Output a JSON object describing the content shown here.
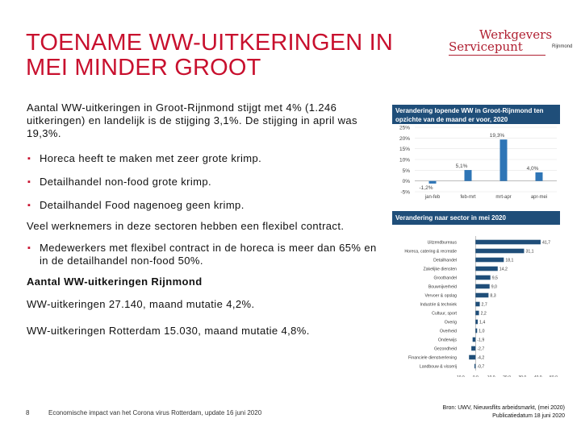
{
  "slide": {
    "title_line1": "TOENAME WW-UITKERINGEN IN",
    "title_line2": "MEI MINDER GROOT"
  },
  "logo": {
    "line1": "Werkgevers",
    "line2": "Servicepunt",
    "line3": "Rijnmond"
  },
  "body": {
    "p1": "Aantal WW-uitkeringen in Groot-Rijnmond stijgt met 4% (1.246 uitkeringen) en landelijk is de stijging 3,1%. De stijging in april was 19,3%.",
    "b1": "Horeca heeft te maken met zeer grote krimp.",
    "b2": "Detailhandel non-food grote krimp.",
    "b3": "Detailhandel Food nagenoeg geen krimp.",
    "p2": "Veel werknemers in deze sectoren hebben een flexibel contract.",
    "b4": "Medewerkers met flexibel contract in de horeca is meer dan 65% en in de detailhandel non-food 50%.",
    "h1": "Aantal WW-uitkeringen Rijnmond",
    "p3": "WW-uitkeringen 27.140, maand mutatie 4,2%.",
    "p4": "WW-uitkeringen Rotterdam 15.030, maand mutatie 4,8%."
  },
  "footer": {
    "page": "8",
    "text": "Economische impact van het Corona virus Rotterdam, update 16 juni 2020",
    "source1": "Bron: UWV, Nieuwsflits arbeidsmarkt, (mei 2020)",
    "source2": "Publicatiedatum 18 juni 2020"
  },
  "chart_data": [
    {
      "type": "bar",
      "title": "Verandering lopende WW in Groot-Rijnmond ten opzichte van de maand er voor, 2020",
      "categories": [
        "jan-feb",
        "feb-mrt",
        "mrt-apr",
        "apr-mei"
      ],
      "values": [
        -1.2,
        5.1,
        19.3,
        4.0
      ],
      "labels": [
        "-1,2%",
        "5,1%",
        "19,3%",
        "4,0%"
      ],
      "yticks": [
        "25%",
        "20%",
        "15%",
        "10%",
        "5%",
        "0%",
        "-5%"
      ],
      "ylim": [
        -5,
        25
      ],
      "color": "#2e75b6"
    },
    {
      "type": "bar",
      "orientation": "horizontal",
      "title": "Verandering naar sector in mei 2020",
      "categories": [
        "Uitzendbureaus",
        "Horeca, catering & recreatie",
        "Detailhandel",
        "Zakelijke diensten",
        "Groothandel",
        "Bouwnijverheid",
        "Vervoer & opslag",
        "Industrie & techniek",
        "Cultuur, sport",
        "Overig",
        "Overheid",
        "Onderwijs",
        "Gezondheid",
        "Financiele dienstverlening",
        "Landbouw & visserij"
      ],
      "values": [
        41.7,
        31.1,
        18.1,
        14.2,
        9.5,
        9.0,
        8.3,
        2.7,
        2.2,
        1.4,
        1.0,
        -1.9,
        -2.7,
        -4.2,
        -0.7
      ],
      "labels": [
        "41,7",
        "31,1",
        "18,1",
        "14,2",
        "9,5",
        "9,0",
        "8,3",
        "2,7",
        "2,2",
        "1,4",
        "1,0",
        "-1,9",
        "-2,7",
        "-4,2",
        "-0,7"
      ],
      "xticks": [
        "-10.0",
        "0.0",
        "10.0",
        "20.0",
        "30.0",
        "40.0",
        "50.0"
      ],
      "xlim": [
        -10,
        50
      ],
      "color": "#1f4e79"
    }
  ]
}
